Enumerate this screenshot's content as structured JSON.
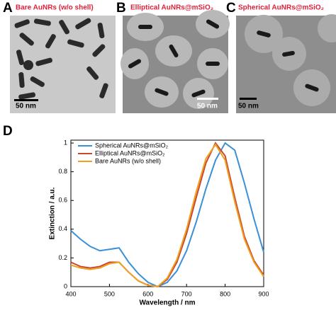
{
  "panels": [
    {
      "label": "A",
      "title": "Bare AuNRs (w/o shell)",
      "scale_bar": "50 nm"
    },
    {
      "label": "B",
      "title": "Elliptical AuNRs@mSiO₂",
      "scale_bar": "50 nm"
    },
    {
      "label": "C",
      "title": "Spherical AuNRs@mSiO₂",
      "scale_bar": "50 nm"
    }
  ],
  "chart_label": "D",
  "chart_data": {
    "type": "line",
    "x_label": "Wavelength / nm",
    "y_label": "Extinction / a.u.",
    "x": [
      400,
      425,
      450,
      475,
      500,
      525,
      550,
      575,
      600,
      625,
      650,
      675,
      700,
      725,
      750,
      775,
      800,
      825,
      850,
      875,
      900
    ],
    "series": [
      {
        "name": "Spherical AuNRs@mSiO₂",
        "color": "#3a8fd8",
        "values": [
          0.39,
          0.33,
          0.28,
          0.25,
          0.26,
          0.27,
          0.17,
          0.09,
          0.03,
          0.0,
          0.03,
          0.11,
          0.25,
          0.45,
          0.68,
          0.88,
          1.0,
          0.95,
          0.72,
          0.47,
          0.24
        ]
      },
      {
        "name": "Elliptical AuNRs@mSiO₂",
        "color": "#c8472e",
        "values": [
          0.17,
          0.14,
          0.13,
          0.14,
          0.17,
          0.17,
          0.1,
          0.04,
          0.01,
          0.0,
          0.05,
          0.17,
          0.37,
          0.62,
          0.86,
          1.0,
          0.91,
          0.62,
          0.35,
          0.18,
          0.08
        ]
      },
      {
        "name": "Bare AuNRs (w/o shell)",
        "color": "#f0a020",
        "values": [
          0.15,
          0.13,
          0.12,
          0.13,
          0.16,
          0.17,
          0.1,
          0.04,
          0.01,
          0.0,
          0.06,
          0.19,
          0.4,
          0.66,
          0.89,
          0.99,
          0.88,
          0.59,
          0.33,
          0.17,
          0.07
        ]
      }
    ],
    "xlim": [
      400,
      900
    ],
    "xticks": [
      400,
      500,
      600,
      700,
      800,
      900
    ],
    "ylim": [
      0,
      1.02
    ],
    "yticks": [
      0,
      0.2,
      0.4,
      0.6,
      0.8,
      1
    ],
    "legend": "upper-left"
  }
}
